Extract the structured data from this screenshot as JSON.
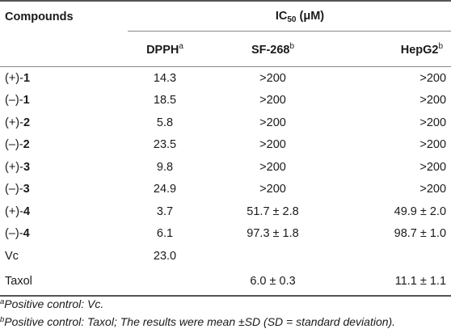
{
  "table": {
    "col_compounds": "Compounds",
    "col_ic50_prefix": "IC",
    "col_ic50_sub": "50",
    "col_ic50_suffix": " (μM)",
    "sub_headers": [
      {
        "label": "DPPH",
        "sup": "a"
      },
      {
        "label": "SF-268",
        "sup": "b"
      },
      {
        "label": "HepG2",
        "sup": "b"
      }
    ],
    "rows": [
      {
        "prefix": "(+)-",
        "num": "1",
        "dpph": "14.3",
        "sf268": ">200",
        "hepg2": ">200"
      },
      {
        "prefix": "(–)-",
        "num": "1",
        "dpph": "18.5",
        "sf268": ">200",
        "hepg2": ">200"
      },
      {
        "prefix": "(+)-",
        "num": "2",
        "dpph": "5.8",
        "sf268": ">200",
        "hepg2": ">200"
      },
      {
        "prefix": "(–)-",
        "num": "2",
        "dpph": "23.5",
        "sf268": ">200",
        "hepg2": ">200"
      },
      {
        "prefix": "(+)-",
        "num": "3",
        "dpph": "9.8",
        "sf268": ">200",
        "hepg2": ">200"
      },
      {
        "prefix": "(–)-",
        "num": "3",
        "dpph": "24.9",
        "sf268": ">200",
        "hepg2": ">200"
      },
      {
        "prefix": "(+)-",
        "num": "4",
        "dpph": "3.7",
        "sf268": "51.7 ± 2.8",
        "hepg2": "49.9 ± 2.0"
      },
      {
        "prefix": "(–)-",
        "num": "4",
        "dpph": "6.1",
        "sf268": "97.3 ± 1.8",
        "hepg2": "98.7 ± 1.0"
      },
      {
        "prefix": "Vc",
        "num": "",
        "dpph": "23.0",
        "sf268": "",
        "hepg2": ""
      },
      {
        "prefix": "Taxol",
        "num": "",
        "dpph": "",
        "sf268": "6.0 ± 0.3",
        "hepg2": "11.1 ± 1.1"
      }
    ]
  },
  "footnotes": {
    "a_mark": "a",
    "a_text": "Positive control: Vc.",
    "b_mark": "b",
    "b_text": "Positive control: Taxol; The results were mean ±SD (SD = standard deviation)."
  }
}
